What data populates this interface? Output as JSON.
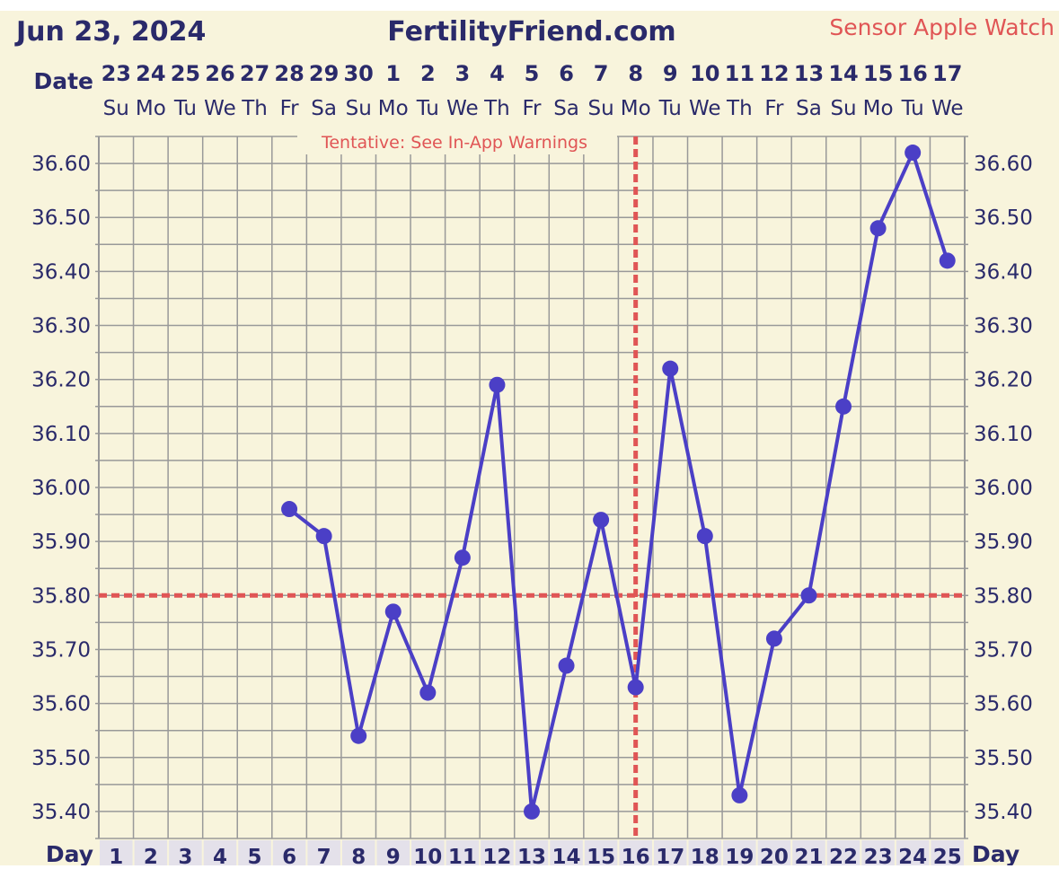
{
  "header": {
    "date": "Jun 23, 2024",
    "site": "FertilityFriend.com",
    "sensor": "Sensor Apple Watch",
    "date_label": "Date",
    "day_label": "Day",
    "notice": "Tentative: See In-App Warnings"
  },
  "colors": {
    "background": "#f8f4dc",
    "grid": "#999999",
    "series": "#4b3fc6",
    "reference": "#e05555",
    "text": "#2a2a6a"
  },
  "chart_data": {
    "type": "line",
    "dates": [
      "23",
      "24",
      "25",
      "26",
      "27",
      "28",
      "29",
      "30",
      "1",
      "2",
      "3",
      "4",
      "5",
      "6",
      "7",
      "8",
      "9",
      "10",
      "11",
      "12",
      "13",
      "14",
      "15",
      "16",
      "17"
    ],
    "weekdays": [
      "Su",
      "Mo",
      "Tu",
      "We",
      "Th",
      "Fr",
      "Sa",
      "Su",
      "Mo",
      "Tu",
      "We",
      "Th",
      "Fr",
      "Sa",
      "Su",
      "Mo",
      "Tu",
      "We",
      "Th",
      "Fr",
      "Sa",
      "Su",
      "Mo",
      "Tu",
      "We"
    ],
    "days": [
      1,
      2,
      3,
      4,
      5,
      6,
      7,
      8,
      9,
      10,
      11,
      12,
      13,
      14,
      15,
      16,
      17,
      18,
      19,
      20,
      21,
      22,
      23,
      24,
      25
    ],
    "y_ticks": [
      "36.60",
      "36.50",
      "36.40",
      "36.30",
      "36.20",
      "36.10",
      "36.00",
      "35.90",
      "35.80",
      "35.70",
      "35.60",
      "35.50",
      "35.40"
    ],
    "ylim": [
      35.35,
      36.65
    ],
    "series": [
      {
        "values": [
          null,
          null,
          null,
          null,
          null,
          35.96,
          35.91,
          35.54,
          35.77,
          35.62,
          35.87,
          36.19,
          35.4,
          35.67,
          35.94,
          35.63,
          36.22,
          35.91,
          35.43,
          35.72,
          35.8,
          36.15,
          36.48,
          36.62,
          36.42
        ]
      }
    ],
    "coverline": 35.8,
    "ovulation_day": 16
  }
}
